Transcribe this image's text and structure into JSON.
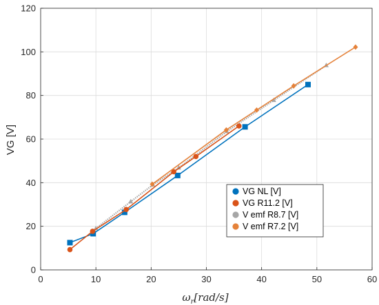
{
  "chart_data": {
    "type": "line",
    "xlabel": "ωr[rad/s]",
    "xlabel_parts": {
      "base": "ω",
      "sub": "r",
      "rest": "[rad/s]"
    },
    "ylabel": "VG [V]",
    "xlim": [
      0,
      60
    ],
    "ylim": [
      0,
      120
    ],
    "x_ticks": [
      "0",
      "10",
      "20",
      "30",
      "40",
      "50",
      "60"
    ],
    "y_ticks": [
      "0",
      "20",
      "40",
      "60",
      "80",
      "100",
      "120"
    ],
    "grid": true,
    "legend_position": "lower-right",
    "series": [
      {
        "name": "VG NL [V]",
        "color": "#0072BD",
        "marker": "square",
        "x": [
          5.3,
          9.5,
          15.2,
          24.8,
          37.0,
          48.4
        ],
        "y": [
          12.5,
          16.6,
          26.4,
          43.3,
          65.6,
          85.0
        ]
      },
      {
        "name": "VG R11.2 [V]",
        "color": "#D95319",
        "marker": "circle",
        "x": [
          5.3,
          9.4,
          15.5,
          24.1,
          28.1,
          35.9
        ],
        "y": [
          9.3,
          17.7,
          27.7,
          45.0,
          52.0,
          66.0
        ]
      },
      {
        "name": "V emf R8.7 [V]",
        "color": "#A6A6A6",
        "marker": "triangle",
        "x": [
          10.0,
          16.3,
          20.3,
          25.0,
          33.7,
          42.2,
          51.7
        ],
        "y": [
          19.0,
          31.3,
          39.0,
          46.8,
          63.5,
          77.8,
          93.8
        ]
      },
      {
        "name": "V emf R7.2 [V]",
        "color": "#EDB120",
        "line_color": "#E5823A",
        "marker": "diamond",
        "x": [
          20.2,
          33.6,
          39.1,
          45.8,
          57.0
        ],
        "y": [
          39.3,
          64.2,
          73.3,
          84.4,
          102.2
        ]
      }
    ]
  }
}
